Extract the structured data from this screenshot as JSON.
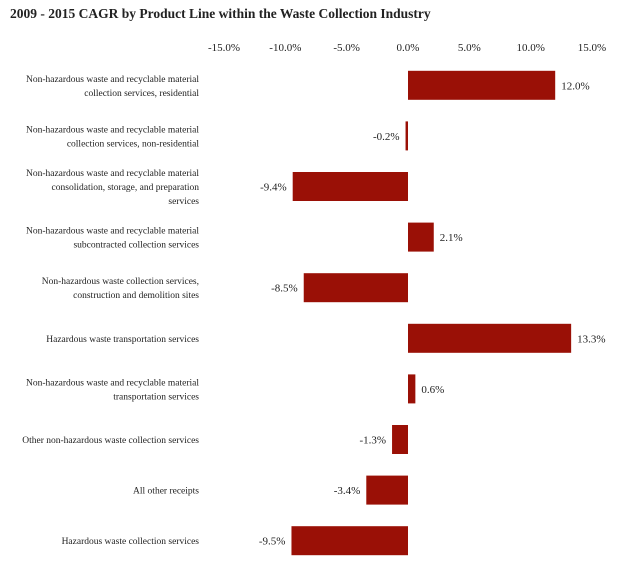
{
  "chart_data": {
    "type": "bar",
    "orientation": "horizontal",
    "title": "2009 - 2015 CAGR by Product Line within the Waste Collection Industry",
    "xlim": [
      -15,
      15
    ],
    "x_ticks": [
      "-15.0%",
      "-10.0%",
      "-5.0%",
      "0.0%",
      "5.0%",
      "10.0%",
      "15.0%"
    ],
    "x_tick_values": [
      -15,
      -10,
      -5,
      0,
      5,
      10,
      15
    ],
    "x_axis_position": "top",
    "grid": false,
    "bar_color": "#9a1006",
    "categories": [
      [
        "Non-hazardous waste and recyclable material",
        "collection services, residential"
      ],
      [
        "Non-hazardous waste and recyclable material",
        "collection services, non-residential"
      ],
      [
        "Non-hazardous waste and recyclable material",
        "consolidation, storage, and preparation",
        "services"
      ],
      [
        "Non-hazardous waste and recyclable material",
        "subcontracted collection services"
      ],
      [
        "Non-hazardous waste collection services,",
        "construction and demolition sites"
      ],
      [
        "Hazardous waste transportation services"
      ],
      [
        "Non-hazardous waste and recyclable material",
        "transportation services"
      ],
      [
        "Other non-hazardous waste collection services"
      ],
      [
        "All other receipts"
      ],
      [
        "Hazardous waste collection services"
      ]
    ],
    "values": [
      12.0,
      -0.2,
      -9.4,
      2.1,
      -8.5,
      13.3,
      0.6,
      -1.3,
      -3.4,
      -9.5
    ],
    "data_labels": [
      "12.0%",
      "-0.2%",
      "-9.4%",
      "2.1%",
      "-8.5%",
      "13.3%",
      "0.6%",
      "-1.3%",
      "-3.4%",
      "-9.5%"
    ]
  }
}
